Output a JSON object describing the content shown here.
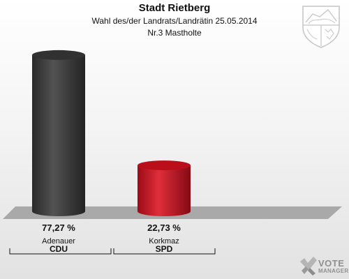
{
  "header": {
    "title": "Stadt Rietberg",
    "subtitle": "Wahl des/der Landrats/Landrätin 25.05.2014",
    "district": "Nr.3 Mastholte"
  },
  "logo": {
    "word": "VOTE",
    "word2": "MANAGER"
  },
  "chart_data": {
    "type": "bar",
    "categories": [
      "Adenauer",
      "Korkmaz"
    ],
    "parties": [
      "CDU",
      "SPD"
    ],
    "values": [
      77.27,
      22.73
    ],
    "value_labels": [
      "77,27 %",
      "22,73 %"
    ],
    "colors": [
      "#3a3a3a",
      "#dc1020"
    ],
    "ylim": [
      0,
      100
    ],
    "grid": false,
    "legend": "none"
  }
}
